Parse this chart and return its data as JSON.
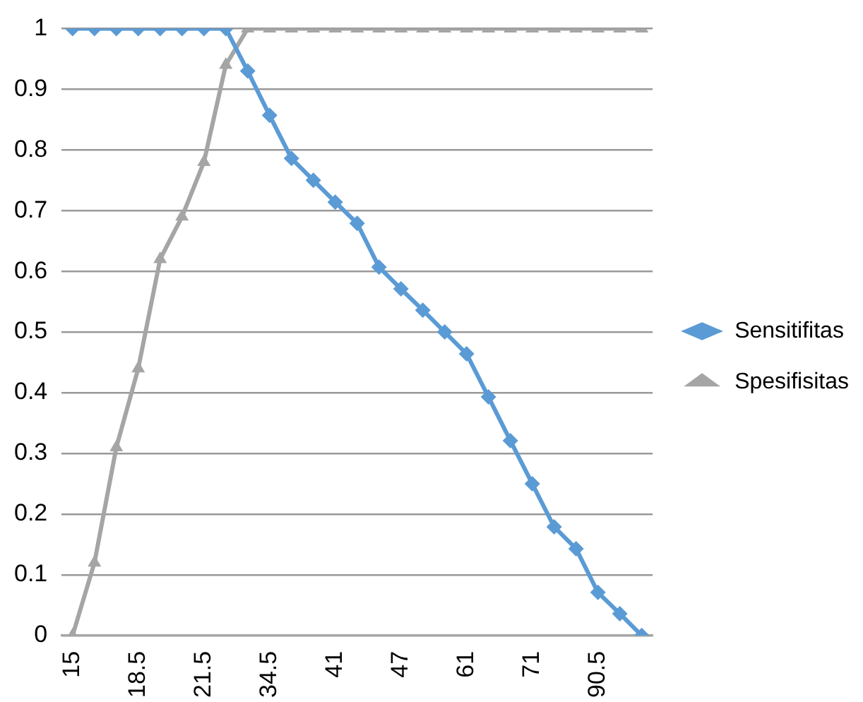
{
  "chart_data": {
    "type": "line",
    "categories": [
      "15",
      null,
      null,
      "18.5",
      null,
      null,
      "21.5",
      null,
      null,
      "34.5",
      null,
      null,
      "41",
      null,
      null,
      "47",
      null,
      null,
      "61",
      null,
      null,
      "71",
      null,
      null,
      "90.5",
      null,
      null
    ],
    "series": [
      {
        "name": "Sensitifitas",
        "color": "#5b9bd5",
        "marker": "diamond",
        "values": [
          1,
          1,
          1,
          1,
          1,
          1,
          1,
          1,
          0.93,
          0.857,
          0.786,
          0.75,
          0.714,
          0.679,
          0.607,
          0.571,
          0.536,
          0.5,
          0.464,
          0.393,
          0.321,
          0.25,
          0.179,
          0.143,
          0.071,
          0.036,
          0
        ]
      },
      {
        "name": "Spesifisitas",
        "color": "#a5a5a5",
        "marker": "triangle",
        "values": [
          0,
          0.12,
          0.31,
          0.44,
          0.62,
          0.69,
          0.78,
          0.94,
          1,
          1,
          1,
          1,
          1,
          1,
          1,
          1,
          1,
          1,
          1,
          1,
          1,
          1,
          1,
          1,
          1,
          1,
          1
        ]
      }
    ],
    "ylim": [
      0,
      1
    ],
    "yticks": [
      0,
      0.1,
      0.2,
      0.3,
      0.4,
      0.5,
      0.6,
      0.7,
      0.8,
      0.9,
      1
    ],
    "grid": "y",
    "legend": "right",
    "line_style": "solid"
  }
}
